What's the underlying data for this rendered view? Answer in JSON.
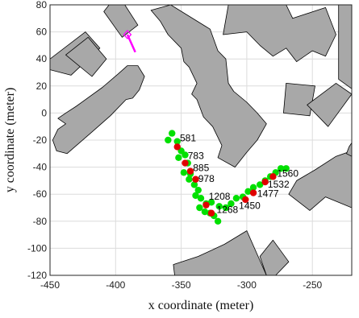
{
  "chart_data": {
    "type": "scatter",
    "title": "",
    "xlabel": "x coordinate (meter)",
    "ylabel": "y coordinate (meter)",
    "xlim": [
      -450,
      -220
    ],
    "ylim": [
      -120,
      80
    ],
    "xticks": [
      -450,
      -400,
      -350,
      -300,
      -250
    ],
    "yticks": [
      -120,
      -100,
      -80,
      -60,
      -40,
      -20,
      0,
      20,
      40,
      60,
      80
    ],
    "grid": true,
    "colors": {
      "building_fill": "#a8a8a8",
      "building_edge": "#000000",
      "green_points": "#00e000",
      "red_points": "#e00000",
      "marker": "#ff00ff",
      "grid": "#dcdcdc"
    },
    "buildings": [
      {
        "name": "building-top-left-slab",
        "polygon": [
          [
            -405,
            80
          ],
          [
            -393,
            80
          ],
          [
            -383,
            65
          ],
          [
            -395,
            56
          ],
          [
            -409,
            75
          ]
        ]
      },
      {
        "name": "building-left-diagonal",
        "polygon": [
          [
            -450,
            32
          ],
          [
            -434,
            28
          ],
          [
            -412,
            48
          ],
          [
            -423,
            60
          ],
          [
            -450,
            40
          ]
        ]
      },
      {
        "name": "building-left-small",
        "polygon": [
          [
            -438,
            43
          ],
          [
            -421,
            56
          ],
          [
            -407,
            40
          ],
          [
            -418,
            27
          ]
        ]
      },
      {
        "name": "building-long-rounded",
        "polygon": [
          [
            -438,
            -8
          ],
          [
            -444,
            -12
          ],
          [
            -448,
            -20
          ],
          [
            -445,
            -28
          ],
          [
            -437,
            -30
          ],
          [
            -418,
            -14
          ],
          [
            -404,
            -2
          ],
          [
            -392,
            10
          ],
          [
            -387,
            11
          ],
          [
            -382,
            17
          ],
          [
            -378,
            27
          ],
          [
            -383,
            35
          ],
          [
            -391,
            35
          ],
          [
            -398,
            29
          ],
          [
            -410,
            19
          ],
          [
            -430,
            5
          ],
          [
            -438,
            0
          ],
          [
            -444,
            -4
          ]
        ]
      },
      {
        "name": "building-central-complex",
        "polygon": [
          [
            -373,
            76
          ],
          [
            -358,
            80
          ],
          [
            -328,
            62
          ],
          [
            -322,
            46
          ],
          [
            -316,
            40
          ],
          [
            -314,
            22
          ],
          [
            -310,
            16
          ],
          [
            -300,
            8
          ],
          [
            -292,
            0
          ],
          [
            -285,
            -8
          ],
          [
            -292,
            -20
          ],
          [
            -300,
            -29
          ],
          [
            -309,
            -40
          ],
          [
            -322,
            -33
          ],
          [
            -319,
            -24
          ],
          [
            -326,
            -10
          ],
          [
            -333,
            -3
          ],
          [
            -338,
            10
          ],
          [
            -342,
            14
          ],
          [
            -338,
            22
          ],
          [
            -344,
            34
          ],
          [
            -348,
            38
          ],
          [
            -350,
            48
          ],
          [
            -360,
            58
          ],
          [
            -366,
            68
          ]
        ]
      },
      {
        "name": "building-upper-right-complex",
        "polygon": [
          [
            -314,
            80
          ],
          [
            -270,
            80
          ],
          [
            -265,
            70
          ],
          [
            -240,
            78
          ],
          [
            -232,
            58
          ],
          [
            -235,
            52
          ],
          [
            -240,
            42
          ],
          [
            -250,
            46
          ],
          [
            -262,
            38
          ],
          [
            -270,
            48
          ],
          [
            -280,
            42
          ],
          [
            -290,
            50
          ],
          [
            -300,
            60
          ],
          [
            -318,
            58
          ]
        ]
      },
      {
        "name": "building-right-tall",
        "polygon": [
          [
            -230,
            80
          ],
          [
            -220,
            80
          ],
          [
            -220,
            18
          ],
          [
            -230,
            25
          ]
        ]
      },
      {
        "name": "building-right-middle-box",
        "polygon": [
          [
            -270,
            22
          ],
          [
            -248,
            20
          ],
          [
            -252,
            -2
          ],
          [
            -272,
            0
          ]
        ]
      },
      {
        "name": "building-right-diamond",
        "polygon": [
          [
            -254,
            6
          ],
          [
            -232,
            22
          ],
          [
            -220,
            14
          ],
          [
            -238,
            -10
          ]
        ]
      },
      {
        "name": "building-right-lower-large",
        "polygon": [
          [
            -268,
            -60
          ],
          [
            -252,
            -72
          ],
          [
            -240,
            -62
          ],
          [
            -220,
            -70
          ],
          [
            -220,
            -28
          ],
          [
            -232,
            -32
          ],
          [
            -248,
            -42
          ],
          [
            -262,
            -50
          ]
        ]
      },
      {
        "name": "building-right-edge-small",
        "polygon": [
          [
            -222,
            -25
          ],
          [
            -220,
            -22
          ],
          [
            -220,
            -32
          ],
          [
            -224,
            -30
          ]
        ]
      },
      {
        "name": "building-bottom-center",
        "polygon": [
          [
            -355,
            -120
          ],
          [
            -285,
            -120
          ],
          [
            -300,
            -87
          ],
          [
            -317,
            -97
          ],
          [
            -337,
            -106
          ],
          [
            -356,
            -112
          ]
        ]
      },
      {
        "name": "building-bottom-small-right",
        "polygon": [
          [
            -290,
            -106
          ],
          [
            -280,
            -94
          ],
          [
            -268,
            -110
          ],
          [
            -278,
            -120
          ],
          [
            -285,
            -120
          ]
        ]
      }
    ],
    "series": [
      {
        "name": "",
        "color": "#00e000",
        "x": [
          -360,
          -357,
          -353,
          -350,
          -352,
          -347,
          -345,
          -343,
          -348,
          -344,
          -340,
          -337,
          -339,
          -335,
          -331,
          -336,
          -332,
          -328,
          -325,
          -322,
          -327,
          -321,
          -316,
          -312,
          -308,
          -303,
          -299,
          -295,
          -290,
          -286,
          -282,
          -278,
          -274,
          -270
        ],
        "y": [
          -20,
          -15,
          -21,
          -28,
          -33,
          -31,
          -37,
          -45,
          -44,
          -49,
          -53,
          -57,
          -61,
          -63,
          -67,
          -70,
          -73,
          -74,
          -76,
          -80,
          -66,
          -69,
          -70,
          -67,
          -63,
          -62,
          -58,
          -55,
          -53,
          -50,
          -47,
          -44,
          -41,
          -41
        ]
      },
      {
        "name": "",
        "color": "#e00000",
        "x": [
          -353,
          -347,
          -343,
          -339,
          -331,
          -327,
          -301,
          -295,
          -286,
          -280
        ],
        "y": [
          -25,
          -37,
          -43,
          -49,
          -68,
          -74,
          -64,
          -59,
          -51,
          -47
        ]
      }
    ],
    "annotations": [
      {
        "text": "581",
        "x": -351,
        "y": -21
      },
      {
        "text": "783",
        "x": -345,
        "y": -34
      },
      {
        "text": "885",
        "x": -341,
        "y": -43
      },
      {
        "text": "978",
        "x": -337,
        "y": -51
      },
      {
        "text": "1208",
        "x": -329,
        "y": -64
      },
      {
        "text": "1268",
        "x": -323,
        "y": -74
      },
      {
        "text": "1450",
        "x": -306,
        "y": -71
      },
      {
        "text": "1477",
        "x": -292,
        "y": -62
      },
      {
        "text": "1532",
        "x": -284,
        "y": -55
      },
      {
        "text": "1560",
        "x": -277,
        "y": -47
      }
    ],
    "marker": {
      "diamond": [
        -391,
        58
      ],
      "line": [
        [
          -391,
          58
        ],
        [
          -385,
          45
        ]
      ]
    }
  }
}
